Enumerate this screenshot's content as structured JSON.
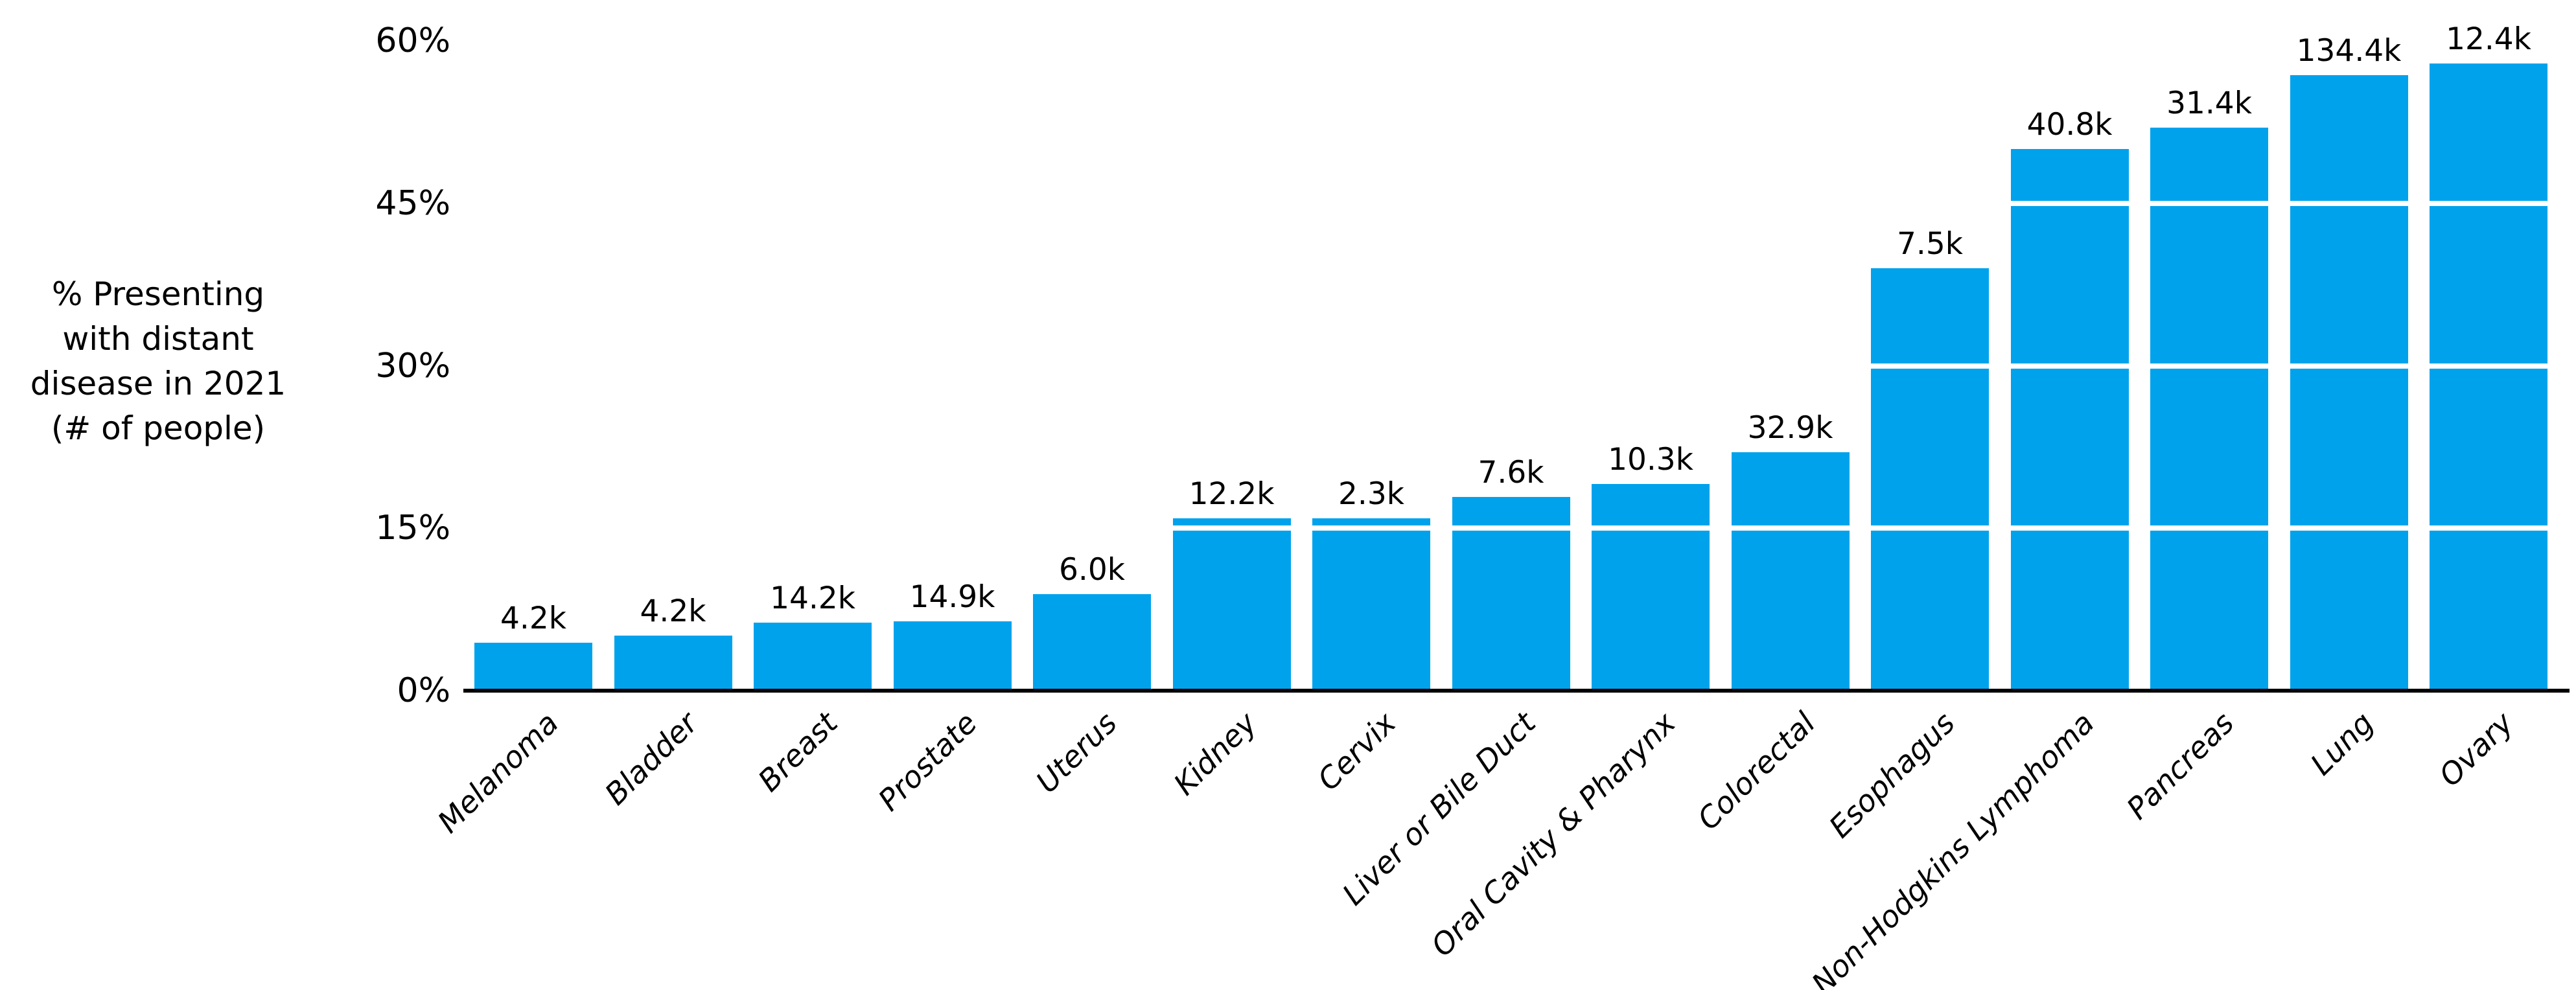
{
  "chart_data": {
    "type": "bar",
    "title": "",
    "ylabel_lines": [
      "% Presenting",
      "with distant",
      "disease in 2021",
      "(# of people)"
    ],
    "categories": [
      "Melanoma",
      "Bladder",
      "Breast",
      "Prostate",
      "Uterus",
      "Kidney",
      "Cervix",
      "Liver or Bile Duct",
      "Oral Cavity & Pharynx",
      "Colorectal",
      "Esophagus",
      "Non-Hodgkins Lymphoma",
      "Pancreas",
      "Lung",
      "Ovary"
    ],
    "values_pct": [
      4.4,
      5.1,
      6.3,
      6.4,
      8.9,
      15.9,
      15.9,
      17.9,
      19.1,
      22.0,
      39.0,
      50.0,
      52.0,
      56.8,
      57.9
    ],
    "bar_count_labels": [
      "4.2k",
      "4.2k",
      "14.2k",
      "14.9k",
      "6.0k",
      "12.2k",
      "2.3k",
      "7.6k",
      "10.3k",
      "32.9k",
      "7.5k",
      "40.8k",
      "31.4k",
      "134.4k",
      "12.4k"
    ],
    "ytick_labels": [
      "0%",
      "15%",
      "30%",
      "45%",
      "60%"
    ],
    "ytick_values": [
      0,
      15,
      30,
      45,
      60
    ],
    "gridline_values": [
      15,
      30,
      45
    ],
    "ylim": [
      0,
      60
    ],
    "legend": "none",
    "grid": "white horizontal lines drawn over bars at 15%, 30%, 45%",
    "colors": {
      "bar": "#00a2ec",
      "axis": "#000000",
      "gridline": "#ffffff",
      "background": "#ffffff",
      "text": "#000000"
    }
  }
}
